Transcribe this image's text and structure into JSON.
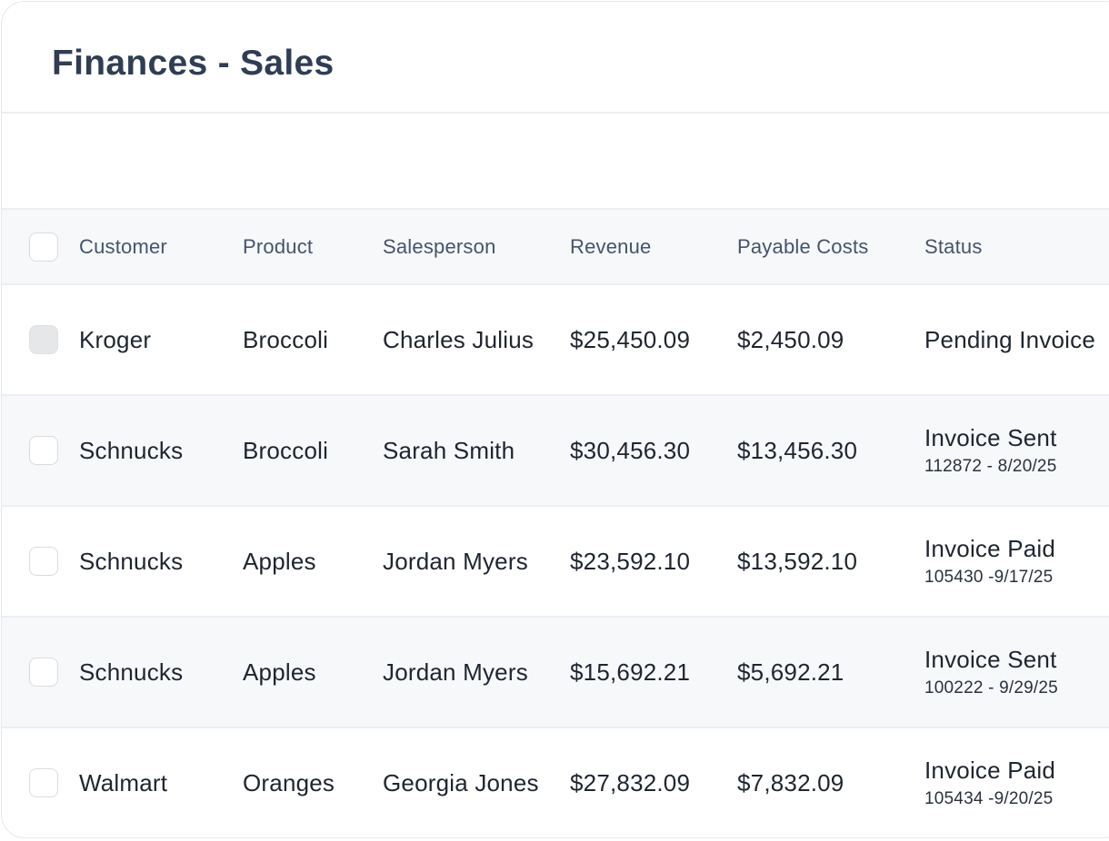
{
  "page": {
    "title": "Finances - Sales"
  },
  "table": {
    "columns": [
      "Customer",
      "Product",
      "Salesperson",
      "Revenue",
      "Payable Costs",
      "Status"
    ],
    "rows": [
      {
        "customer": "Kroger",
        "product": "Broccoli",
        "salesperson": "Charles Julius",
        "revenue": "$25,450.09",
        "payable_costs": "$2,450.09",
        "status": "Pending Invoice",
        "status_detail": "",
        "checkbox_disabled": true
      },
      {
        "customer": "Schnucks",
        "product": "Broccoli",
        "salesperson": "Sarah Smith",
        "revenue": "$30,456.30",
        "payable_costs": "$13,456.30",
        "status": "Invoice Sent",
        "status_detail": "112872 - 8/20/25",
        "checkbox_disabled": false
      },
      {
        "customer": "Schnucks",
        "product": "Apples",
        "salesperson": "Jordan Myers",
        "revenue": "$23,592.10",
        "payable_costs": "$13,592.10",
        "status": "Invoice Paid",
        "status_detail": "105430 -9/17/25",
        "checkbox_disabled": false
      },
      {
        "customer": "Schnucks",
        "product": "Apples",
        "salesperson": "Jordan Myers",
        "revenue": "$15,692.21",
        "payable_costs": "$5,692.21",
        "status": "Invoice Sent",
        "status_detail": "100222 - 9/29/25",
        "checkbox_disabled": false
      },
      {
        "customer": "Walmart",
        "product": "Oranges",
        "salesperson": "Georgia Jones",
        "revenue": "$27,832.09",
        "payable_costs": "$7,832.09",
        "status": "Invoice Paid",
        "status_detail": "105434 -9/20/25",
        "checkbox_disabled": false
      }
    ]
  }
}
